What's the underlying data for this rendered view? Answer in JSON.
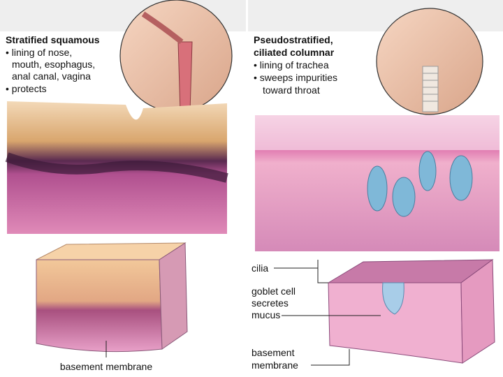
{
  "panels": [
    {
      "title": [
        "Stratified squamous"
      ],
      "lines": [
        "• lining of nose,",
        "mouth, esophagus,",
        "anal canal, vagina",
        "• protects"
      ],
      "labels": [
        "basement membrane"
      ]
    },
    {
      "title": [
        "Pseudostratified,",
        "ciliated columnar"
      ],
      "lines": [
        "• lining of trachea",
        "• sweeps impurities",
        "toward throat"
      ],
      "labels": [
        "cilia",
        "goblet cell",
        "secretes",
        "mucus",
        "basement",
        "membrane"
      ]
    }
  ]
}
